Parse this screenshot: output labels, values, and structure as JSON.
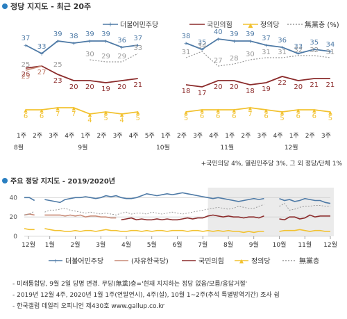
{
  "chart_data": [
    {
      "type": "line",
      "title": "정당 지지도 - 최근 20주",
      "legend_position": "top-right",
      "legend": [
        "더불어민주당",
        "국민의힘",
        "정의당",
        "無黨층 (%)"
      ],
      "x": [
        "1주",
        "2주",
        "3주",
        "4주",
        "1주",
        "2주",
        "3주",
        "4주",
        "5주",
        "1주",
        "2주",
        "3주",
        "4주",
        "1주",
        "2주",
        "3주",
        "4주",
        "1주",
        "2주",
        "3주"
      ],
      "months": [
        {
          "label": "8월",
          "start": 0
        },
        {
          "label": "9월",
          "start": 4
        },
        {
          "label": "10월",
          "start": 9
        },
        {
          "label": "11월",
          "start": 13
        },
        {
          "label": "12월",
          "start": 17
        }
      ],
      "series": [
        {
          "name": "더불어민주당",
          "color": "#4e7aa6",
          "values": [
            37,
            33,
            39,
            38,
            39,
            39,
            36,
            37,
            null,
            null,
            38,
            35,
            40,
            39,
            39,
            37,
            36,
            33,
            35,
            34
          ]
        },
        {
          "name": "국민의힘",
          "color": "#8b2b2b",
          "values": [
            26,
            27,
            23,
            20,
            20,
            19,
            20,
            21,
            null,
            null,
            18,
            17,
            20,
            20,
            18,
            19,
            22,
            20,
            21,
            21
          ]
        },
        {
          "name": "정의당",
          "color": "#f2c230",
          "values": [
            6,
            6,
            7,
            7,
            4,
            5,
            4,
            5,
            null,
            null,
            5,
            6,
            6,
            6,
            7,
            6,
            5,
            6,
            6,
            5
          ]
        },
        {
          "name": "無黨층",
          "color": "#999999",
          "values": [
            25,
            null,
            25,
            null,
            30,
            29,
            29,
            33,
            null,
            null,
            31,
            34,
            27,
            28,
            30,
            31,
            31,
            32,
            32,
            31
          ]
        },
        {
          "name": "자유한국당",
          "color": "#c88a76",
          "values": [
            25,
            27,
            null,
            null,
            null,
            null,
            null,
            null,
            null,
            null,
            null,
            null,
            null,
            null,
            null,
            null,
            null,
            null,
            null,
            null
          ]
        }
      ],
      "ylim": [
        0,
        46
      ],
      "note": "+국민의당 4%, 열린민주당 3%, 그 외 정당/단체 1%"
    },
    {
      "type": "line",
      "title": "주요 정당 지지도 - 2019/2020년",
      "x_labels": [
        "12월",
        "1월",
        "2월",
        "3월",
        "4월",
        "5월",
        "6월",
        "7월",
        "8월",
        "9월",
        "10월",
        "11월",
        "12월"
      ],
      "y_ticks": [
        40,
        20,
        0
      ],
      "ylim": [
        0,
        46
      ],
      "grid": true,
      "legend_position": "bottom",
      "legend": [
        "더불어민주당",
        "(자유한국당)",
        "국민의힘",
        "정의당",
        "無黨층"
      ],
      "series": [
        {
          "name": "더불어민주당",
          "color": "#4e7aa6",
          "values": [
            40,
            40,
            37,
            null,
            38,
            37,
            36,
            35,
            38,
            39,
            40,
            40,
            41,
            40,
            39,
            40,
            42,
            41,
            42,
            40,
            39,
            39,
            40,
            42,
            44,
            43,
            42,
            43,
            44,
            43,
            44,
            45,
            44,
            43,
            42,
            41,
            40,
            39,
            40,
            39,
            38,
            37,
            36,
            37,
            38,
            39,
            38,
            39,
            null,
            null,
            39,
            37,
            38,
            36,
            37,
            39,
            38,
            37,
            37,
            35,
            34
          ]
        },
        {
          "name": "자유한국당",
          "color": "#c88a76",
          "values": [
            22,
            23,
            22,
            null,
            22,
            22,
            22,
            22,
            21,
            22,
            21,
            22,
            20,
            21,
            21,
            20,
            20,
            19,
            19,
            null,
            null,
            null,
            null,
            null,
            null,
            null,
            null,
            null,
            null,
            null,
            null,
            null,
            null,
            null,
            null,
            null,
            null,
            null,
            null,
            null,
            null,
            null,
            null,
            null,
            null,
            null,
            null,
            null,
            null,
            null,
            null,
            null,
            null,
            null,
            null,
            null,
            null,
            null,
            null,
            null,
            null
          ]
        },
        {
          "name": "국민의힘",
          "color": "#8b2b2b",
          "values": [
            null,
            null,
            null,
            null,
            null,
            null,
            null,
            null,
            null,
            null,
            null,
            null,
            null,
            null,
            null,
            null,
            null,
            null,
            null,
            17,
            18,
            19,
            17,
            18,
            17,
            17,
            18,
            17,
            18,
            17,
            17,
            18,
            19,
            18,
            19,
            19,
            21,
            22,
            21,
            20,
            21,
            20,
            20,
            19,
            20,
            20,
            19,
            21,
            null,
            null,
            18,
            17,
            20,
            20,
            18,
            19,
            22,
            20,
            21,
            21,
            21
          ]
        },
        {
          "name": "정의당",
          "color": "#f2c230",
          "values": [
            8,
            7,
            7,
            null,
            8,
            7,
            6,
            6,
            5,
            5,
            6,
            5,
            6,
            6,
            5,
            6,
            7,
            6,
            6,
            5,
            5,
            6,
            6,
            5,
            6,
            5,
            6,
            6,
            5,
            6,
            6,
            6,
            5,
            6,
            6,
            5,
            6,
            5,
            6,
            5,
            6,
            5,
            5,
            4,
            5,
            4,
            5,
            5,
            null,
            null,
            5,
            6,
            6,
            6,
            7,
            6,
            5,
            6,
            6,
            5,
            5
          ]
        },
        {
          "name": "無黨층",
          "color": "#999999",
          "values": [
            22,
            23,
            26,
            null,
            25,
            27,
            27,
            28,
            29,
            27,
            26,
            25,
            24,
            25,
            24,
            23,
            24,
            23,
            22,
            24,
            25,
            23,
            24,
            24,
            23,
            25,
            24,
            23,
            24,
            25,
            24,
            23,
            24,
            25,
            26,
            27,
            28,
            29,
            30,
            29,
            28,
            29,
            31,
            30,
            29,
            29,
            31,
            33,
            null,
            null,
            31,
            34,
            27,
            28,
            30,
            31,
            31,
            32,
            32,
            31,
            31
          ]
        }
      ]
    }
  ],
  "footer": {
    "line1": "- 미래통합당, 9월 2일 당명 변경. 무당(無黨)층='현재 지지하는 정당 없음/모름/응답거절'",
    "line2": "- 2019년 12월 4주, 2020년 1월 1주(연말연시), 4주(설), 10월 1~2주(추석 특별방역기간) 조사 쉼",
    "line3": "- 한국갤럽 데일리 오피니언 제430호 www.gallup.co.kr"
  }
}
